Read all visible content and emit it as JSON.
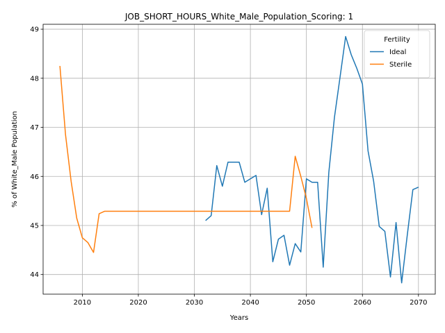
{
  "chart_data": {
    "type": "line",
    "title": "JOB_SHORT_HOURS_White_Male_Population_Scoring: 1",
    "xlabel": "Years",
    "ylabel": "% of White_Male Population",
    "xlim": [
      2003,
      2073
    ],
    "ylim": [
      43.6,
      49.1
    ],
    "xticks": [
      2010,
      2020,
      2030,
      2040,
      2050,
      2060,
      2070
    ],
    "yticks": [
      44,
      45,
      46,
      47,
      48,
      49
    ],
    "grid": true,
    "legend": {
      "title": "Fertility",
      "position": "top-right"
    },
    "series": [
      {
        "name": "Ideal",
        "color": "#1f77b4",
        "x": [
          2032,
          2033,
          2034,
          2035,
          2036,
          2037,
          2038,
          2039,
          2040,
          2041,
          2042,
          2043,
          2044,
          2045,
          2046,
          2047,
          2048,
          2049,
          2050,
          2051,
          2052,
          2053,
          2054,
          2055,
          2056,
          2057,
          2058,
          2059,
          2060,
          2061,
          2062,
          2063,
          2064,
          2065,
          2066,
          2067,
          2068,
          2069,
          2070
        ],
        "y": [
          45.1,
          45.2,
          46.22,
          45.8,
          46.29,
          46.29,
          46.29,
          45.88,
          45.95,
          46.02,
          45.22,
          45.76,
          44.26,
          44.72,
          44.8,
          44.19,
          44.63,
          44.46,
          45.95,
          45.88,
          45.88,
          44.15,
          46.08,
          47.2,
          48.02,
          48.85,
          48.48,
          48.2,
          47.88,
          46.52,
          45.9,
          44.98,
          44.88,
          43.95,
          45.06,
          43.83,
          44.8,
          45.73,
          45.78
        ]
      },
      {
        "name": "Sterile",
        "color": "#ff7f0e",
        "x": [
          2006,
          2007,
          2008,
          2009,
          2010,
          2011,
          2012,
          2013,
          2014,
          2015,
          2016,
          2017,
          2018,
          2019,
          2020,
          2021,
          2022,
          2023,
          2024,
          2025,
          2026,
          2027,
          2028,
          2029,
          2030,
          2031,
          2032,
          2033,
          2034,
          2035,
          2036,
          2037,
          2038,
          2039,
          2040,
          2041,
          2042,
          2043,
          2044,
          2045,
          2046,
          2047,
          2048,
          2049,
          2050,
          2051
        ],
        "y": [
          48.25,
          46.85,
          45.9,
          45.15,
          44.75,
          44.65,
          44.45,
          45.24,
          45.29,
          45.29,
          45.29,
          45.29,
          45.29,
          45.29,
          45.29,
          45.29,
          45.29,
          45.29,
          45.29,
          45.29,
          45.29,
          45.29,
          45.29,
          45.29,
          45.29,
          45.29,
          45.29,
          45.29,
          45.29,
          45.29,
          45.29,
          45.29,
          45.29,
          45.29,
          45.29,
          45.29,
          45.29,
          45.29,
          45.29,
          45.29,
          45.29,
          45.29,
          46.41,
          46.0,
          45.55,
          44.95
        ]
      }
    ]
  }
}
